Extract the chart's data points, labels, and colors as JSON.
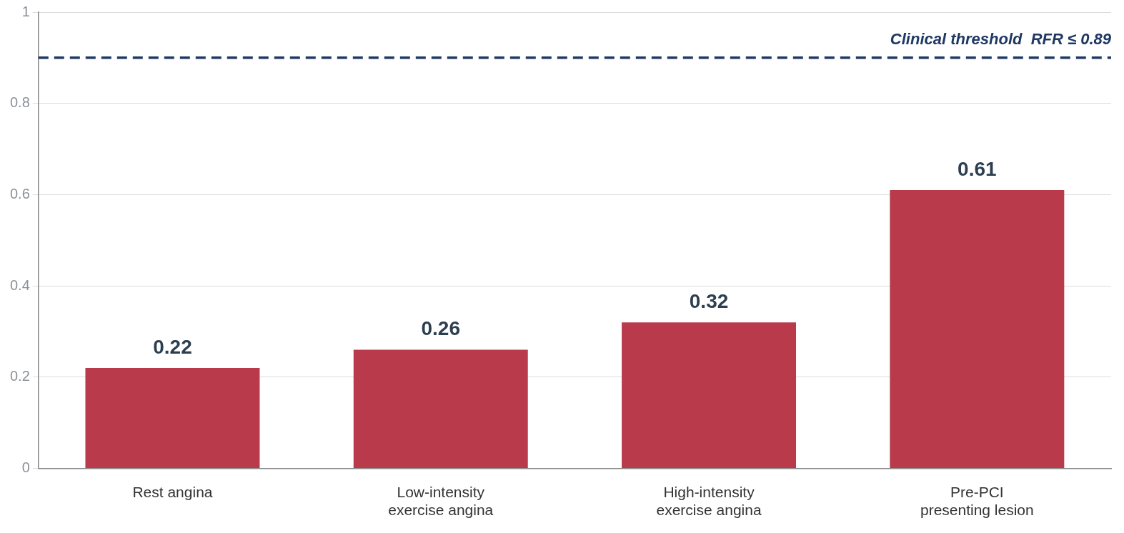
{
  "chart_data": {
    "type": "bar",
    "categories": [
      "Rest angina",
      "Low-intensity exercise angina",
      "High-intensity exercise angina",
      "Pre-PCI presenting lesion"
    ],
    "values": [
      0.22,
      0.26,
      0.32,
      0.61
    ],
    "color": "#b83a4b",
    "data_labels": true,
    "ylim": [
      0,
      1
    ],
    "yticks": [
      0,
      0.2,
      0.4,
      0.6,
      0.8,
      1
    ],
    "grid": "y",
    "legend": false,
    "ref_lines": [
      {
        "axis": "y",
        "value": 0.9,
        "label": "Clinical threshold  RFR ≤ 0.89",
        "color": "#1f3864",
        "line_style": "dashed"
      }
    ]
  }
}
